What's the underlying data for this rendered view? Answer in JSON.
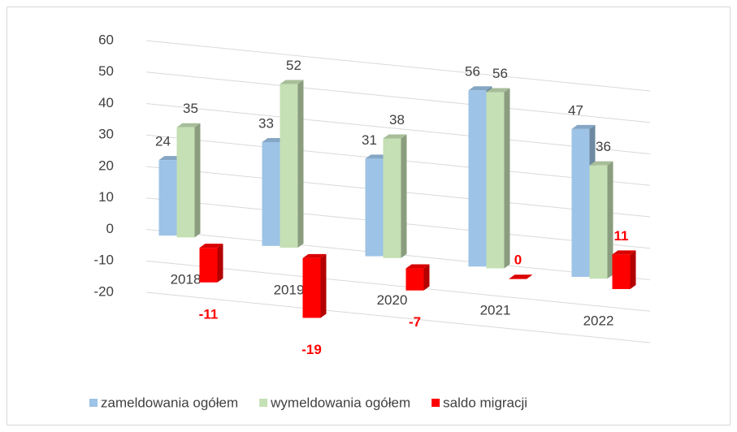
{
  "chart_data": {
    "type": "bar3d",
    "categories": [
      "2018",
      "2019",
      "2020",
      "2021",
      "2022"
    ],
    "series": [
      {
        "name": "zameldowania ogółem",
        "color": "#9dc3e6",
        "values": [
          24,
          33,
          31,
          56,
          47
        ]
      },
      {
        "name": "wymeldowania ogółem",
        "color": "#c5e0b4",
        "values": [
          35,
          52,
          38,
          56,
          36
        ]
      },
      {
        "name": "saldo migracji",
        "color": "#ff0000",
        "values": [
          -11,
          -19,
          -7,
          0,
          11
        ]
      }
    ],
    "ylim": [
      -20,
      60
    ],
    "yticks": [
      -20,
      -10,
      0,
      10,
      20,
      30,
      40,
      50,
      60
    ],
    "grid": true,
    "legend": "bottom"
  }
}
